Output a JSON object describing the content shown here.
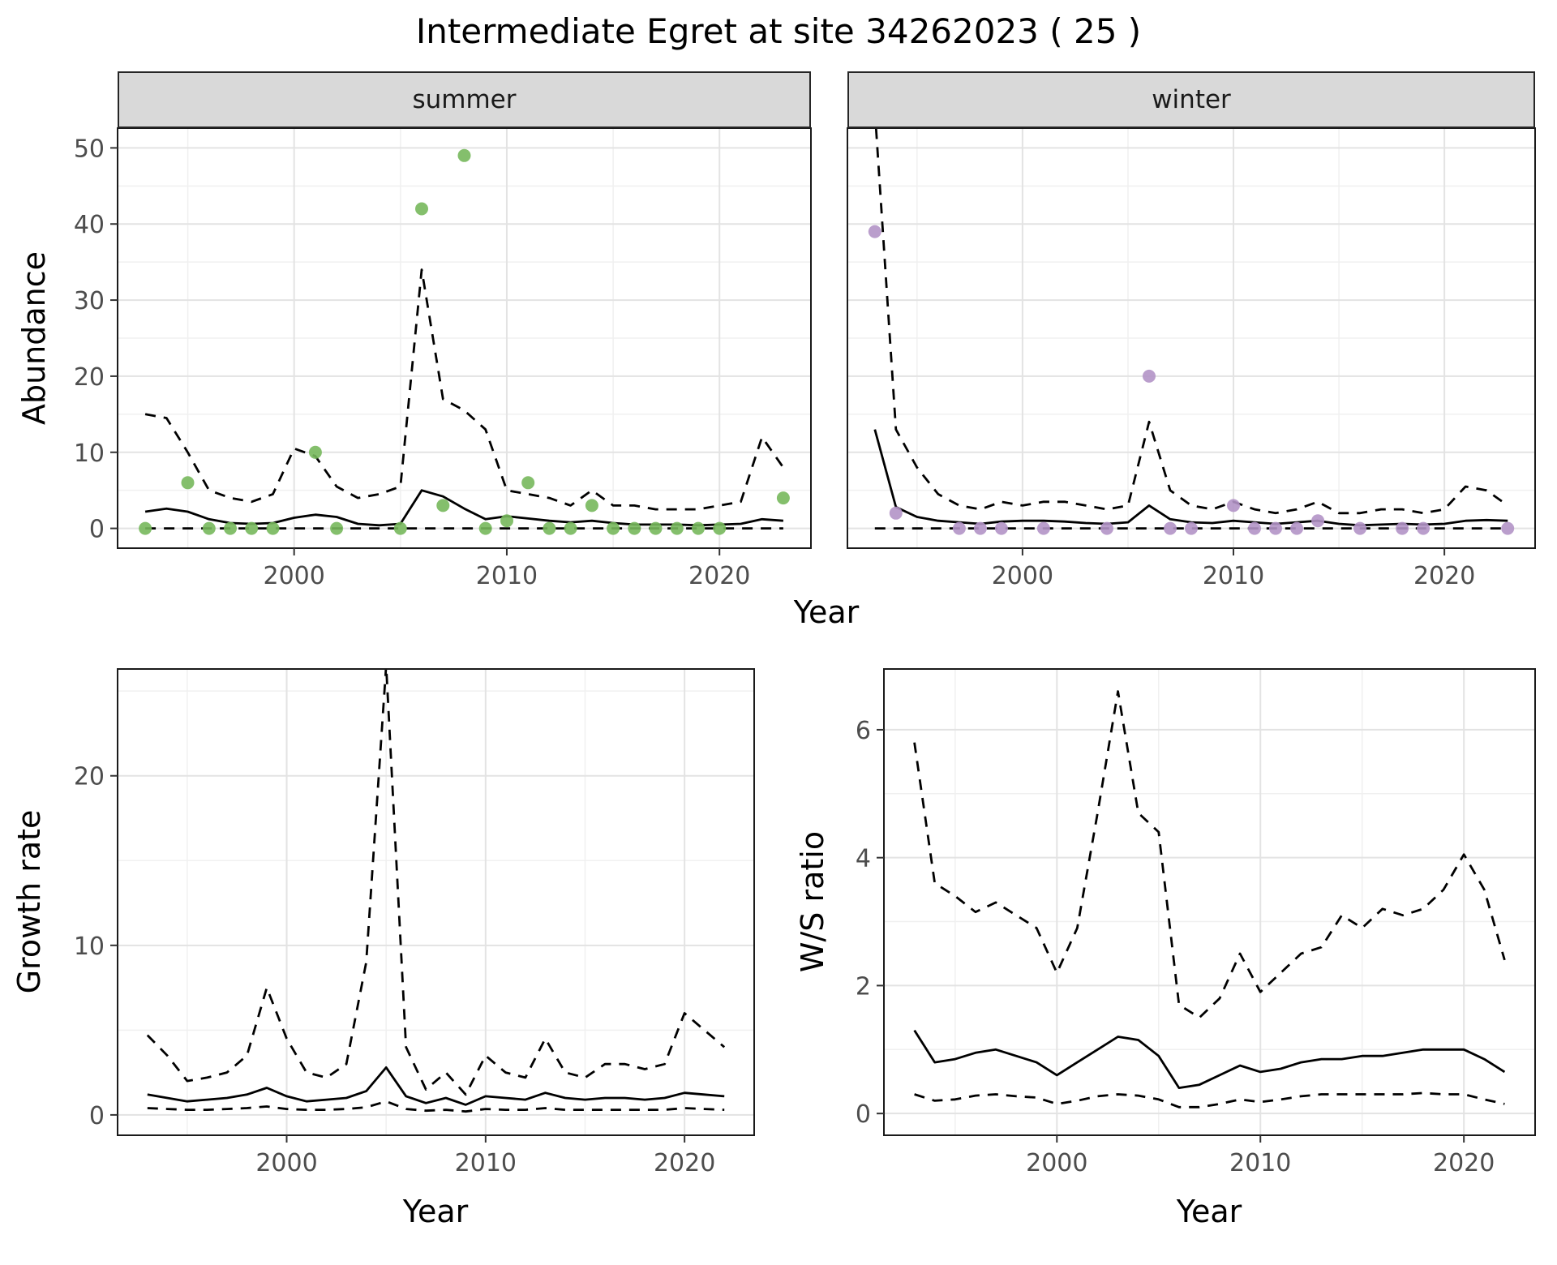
{
  "title": "Intermediate Egret at site 34262023 ( 25 )",
  "colors": {
    "summer_point": "#77b85c",
    "winter_point": "#b294c7",
    "line": "#000000",
    "strip_bg": "#d9d9d9",
    "grid_major": "#e3e3e3",
    "grid_minor": "#f0f0f0",
    "panel_border": "#1a1a1a",
    "tick_label": "#4d4d4d"
  },
  "chart_data": [
    {
      "type": "line",
      "facet_label": "summer",
      "xlabel": "Year",
      "ylabel": "Abundance",
      "xlim": [
        1991.7,
        2024.3
      ],
      "ylim": [
        -2.6,
        52.6
      ],
      "xticks": [
        2000,
        2010,
        2020
      ],
      "yticks": [
        0,
        10,
        20,
        30,
        40,
        50
      ],
      "x": [
        1993,
        1994,
        1995,
        1996,
        1997,
        1998,
        1999,
        2000,
        2001,
        2002,
        2003,
        2004,
        2005,
        2006,
        2007,
        2008,
        2009,
        2010,
        2011,
        2012,
        2013,
        2014,
        2015,
        2016,
        2017,
        2018,
        2019,
        2020,
        2021,
        2022,
        2023
      ],
      "series": [
        {
          "name": "median",
          "style": "solid",
          "values": [
            2.2,
            2.6,
            2.2,
            1.2,
            0.7,
            0.6,
            0.7,
            1.4,
            1.8,
            1.5,
            0.6,
            0.4,
            0.6,
            5,
            4.2,
            2.6,
            1.2,
            1.6,
            1.3,
            1,
            0.8,
            1,
            0.7,
            0.5,
            0.5,
            0.5,
            0.4,
            0.5,
            0.6,
            1.2,
            1
          ]
        },
        {
          "name": "upper_ci",
          "style": "dashed",
          "values": [
            15,
            14.5,
            10,
            5,
            4,
            3.5,
            4.5,
            10.5,
            9.5,
            5.5,
            4,
            4.5,
            5.5,
            34,
            17,
            15.5,
            13,
            5,
            4.5,
            4,
            3,
            5,
            3,
            3,
            2.5,
            2.5,
            2.5,
            3,
            3.5,
            12,
            8
          ]
        },
        {
          "name": "lower_ci",
          "style": "dashed",
          "values": [
            0,
            0,
            0,
            0,
            0,
            0,
            0,
            0,
            0,
            0,
            0,
            0,
            0,
            0,
            0,
            0,
            0,
            0,
            0,
            0,
            0,
            0,
            0,
            0,
            0,
            0,
            0,
            0,
            0,
            0,
            0
          ]
        }
      ],
      "points": {
        "name": "observed",
        "color_key": "summer_point",
        "x": [
          1993,
          1995,
          1996,
          1997,
          1998,
          1999,
          2001,
          2002,
          2005,
          2006,
          2007,
          2008,
          2009,
          2010,
          2011,
          2012,
          2013,
          2014,
          2015,
          2016,
          2017,
          2018,
          2019,
          2020,
          2023
        ],
        "y": [
          0,
          6,
          0,
          0,
          0,
          0,
          10,
          0,
          0,
          42,
          3,
          49,
          0,
          1,
          6,
          0,
          0,
          3,
          0,
          0,
          0,
          0,
          0,
          0,
          4
        ]
      }
    },
    {
      "type": "line",
      "facet_label": "winter",
      "xlabel": "Year",
      "ylabel": "",
      "xlim": [
        1991.7,
        2024.3
      ],
      "ylim": [
        -2.6,
        52.6
      ],
      "xticks": [
        2000,
        2010,
        2020
      ],
      "yticks": [
        0,
        10,
        20,
        30,
        40,
        50
      ],
      "x": [
        1993,
        1994,
        1995,
        1996,
        1997,
        1998,
        1999,
        2000,
        2001,
        2002,
        2003,
        2004,
        2005,
        2006,
        2007,
        2008,
        2009,
        2010,
        2011,
        2012,
        2013,
        2014,
        2015,
        2016,
        2017,
        2018,
        2019,
        2020,
        2021,
        2022,
        2023
      ],
      "series": [
        {
          "name": "median",
          "style": "solid",
          "values": [
            13,
            2.8,
            1.5,
            1,
            0.8,
            0.6,
            0.9,
            1,
            1,
            0.9,
            0.7,
            0.6,
            0.8,
            3,
            1.2,
            0.8,
            0.7,
            1,
            0.8,
            0.6,
            0.8,
            1,
            0.6,
            0.4,
            0.5,
            0.6,
            0.5,
            0.6,
            1,
            1.1,
            1
          ]
        },
        {
          "name": "upper_ci",
          "style": "dashed",
          "values": [
            55,
            13,
            8,
            4.5,
            3,
            2.5,
            3.5,
            3,
            3.5,
            3.5,
            3,
            2.5,
            3,
            14,
            5,
            3,
            2.5,
            3.5,
            2.5,
            2,
            2.5,
            3.5,
            2,
            2,
            2.5,
            2.5,
            2,
            2.5,
            5.5,
            5,
            3
          ]
        },
        {
          "name": "lower_ci",
          "style": "dashed",
          "values": [
            0,
            0,
            0,
            0,
            0,
            0,
            0,
            0,
            0,
            0,
            0,
            0,
            0,
            0,
            0,
            0,
            0,
            0,
            0,
            0,
            0,
            0,
            0,
            0,
            0,
            0,
            0,
            0,
            0,
            0,
            0
          ]
        }
      ],
      "points": {
        "name": "observed",
        "color_key": "winter_point",
        "x": [
          1993,
          1994,
          1997,
          1998,
          1999,
          2001,
          2004,
          2006,
          2007,
          2008,
          2010,
          2011,
          2012,
          2013,
          2014,
          2016,
          2018,
          2019,
          2023
        ],
        "y": [
          39,
          2,
          0,
          0,
          0,
          0,
          0,
          20,
          0,
          0,
          3,
          0,
          0,
          0,
          1,
          0,
          0,
          0,
          0
        ]
      }
    },
    {
      "type": "line",
      "facet_label": "",
      "xlabel": "Year",
      "ylabel": "Growth rate",
      "xlim": [
        1991.5,
        2023.5
      ],
      "ylim": [
        -1.2,
        26.3
      ],
      "xticks": [
        2000,
        2010,
        2020
      ],
      "yticks": [
        0,
        10,
        20
      ],
      "x": [
        1993,
        1994,
        1995,
        1996,
        1997,
        1998,
        1999,
        2000,
        2001,
        2002,
        2003,
        2004,
        2005,
        2006,
        2007,
        2008,
        2009,
        2010,
        2011,
        2012,
        2013,
        2014,
        2015,
        2016,
        2017,
        2018,
        2019,
        2020,
        2021,
        2022
      ],
      "series": [
        {
          "name": "median",
          "style": "solid",
          "values": [
            1.2,
            1,
            0.8,
            0.9,
            1,
            1.2,
            1.6,
            1.1,
            0.8,
            0.9,
            1,
            1.4,
            2.8,
            1.1,
            0.7,
            1,
            0.6,
            1.1,
            1,
            0.9,
            1.3,
            1,
            0.9,
            1,
            1,
            0.9,
            1,
            1.3,
            1.2,
            1.1
          ]
        },
        {
          "name": "upper_ci",
          "style": "dashed",
          "values": [
            4.7,
            3.5,
            2,
            2.2,
            2.5,
            3.5,
            7.5,
            4.5,
            2.5,
            2.2,
            3,
            9,
            26.5,
            4,
            1.5,
            2.5,
            1.2,
            3.5,
            2.5,
            2.2,
            4.5,
            2.5,
            2.2,
            3,
            3,
            2.7,
            3,
            6,
            5,
            4
          ]
        },
        {
          "name": "lower_ci",
          "style": "dashed",
          "values": [
            0.4,
            0.35,
            0.3,
            0.3,
            0.35,
            0.4,
            0.5,
            0.35,
            0.3,
            0.3,
            0.35,
            0.45,
            0.8,
            0.35,
            0.25,
            0.3,
            0.2,
            0.35,
            0.3,
            0.3,
            0.4,
            0.3,
            0.3,
            0.3,
            0.3,
            0.3,
            0.3,
            0.4,
            0.35,
            0.3
          ]
        }
      ]
    },
    {
      "type": "line",
      "facet_label": "",
      "xlabel": "Year",
      "ylabel": "W/S ratio",
      "xlim": [
        1991.5,
        2023.5
      ],
      "ylim": [
        -0.34,
        6.95
      ],
      "xticks": [
        2000,
        2010,
        2020
      ],
      "yticks": [
        0,
        2,
        4,
        6
      ],
      "x": [
        1993,
        1994,
        1995,
        1996,
        1997,
        1998,
        1999,
        2000,
        2001,
        2002,
        2003,
        2004,
        2005,
        2006,
        2007,
        2008,
        2009,
        2010,
        2011,
        2012,
        2013,
        2014,
        2015,
        2016,
        2017,
        2018,
        2019,
        2020,
        2021,
        2022
      ],
      "series": [
        {
          "name": "median",
          "style": "solid",
          "values": [
            1.3,
            0.8,
            0.85,
            0.95,
            1,
            0.9,
            0.8,
            0.6,
            0.8,
            1,
            1.2,
            1.15,
            0.9,
            0.4,
            0.45,
            0.6,
            0.75,
            0.65,
            0.7,
            0.8,
            0.85,
            0.85,
            0.9,
            0.9,
            0.95,
            1,
            1,
            1,
            0.85,
            0.65
          ]
        },
        {
          "name": "upper_ci",
          "style": "dashed",
          "values": [
            5.8,
            3.6,
            3.4,
            3.15,
            3.3,
            3.1,
            2.9,
            2.2,
            2.9,
            4.7,
            6.6,
            4.7,
            4.4,
            1.7,
            1.5,
            1.8,
            2.5,
            1.9,
            2.2,
            2.5,
            2.6,
            3.1,
            2.9,
            3.2,
            3.1,
            3.2,
            3.5,
            4.05,
            3.5,
            2.4
          ]
        },
        {
          "name": "lower_ci",
          "style": "dashed",
          "values": [
            0.3,
            0.2,
            0.22,
            0.28,
            0.3,
            0.27,
            0.25,
            0.15,
            0.2,
            0.27,
            0.3,
            0.28,
            0.22,
            0.1,
            0.1,
            0.15,
            0.22,
            0.18,
            0.22,
            0.27,
            0.3,
            0.3,
            0.3,
            0.3,
            0.3,
            0.32,
            0.3,
            0.3,
            0.22,
            0.15
          ]
        }
      ]
    }
  ]
}
